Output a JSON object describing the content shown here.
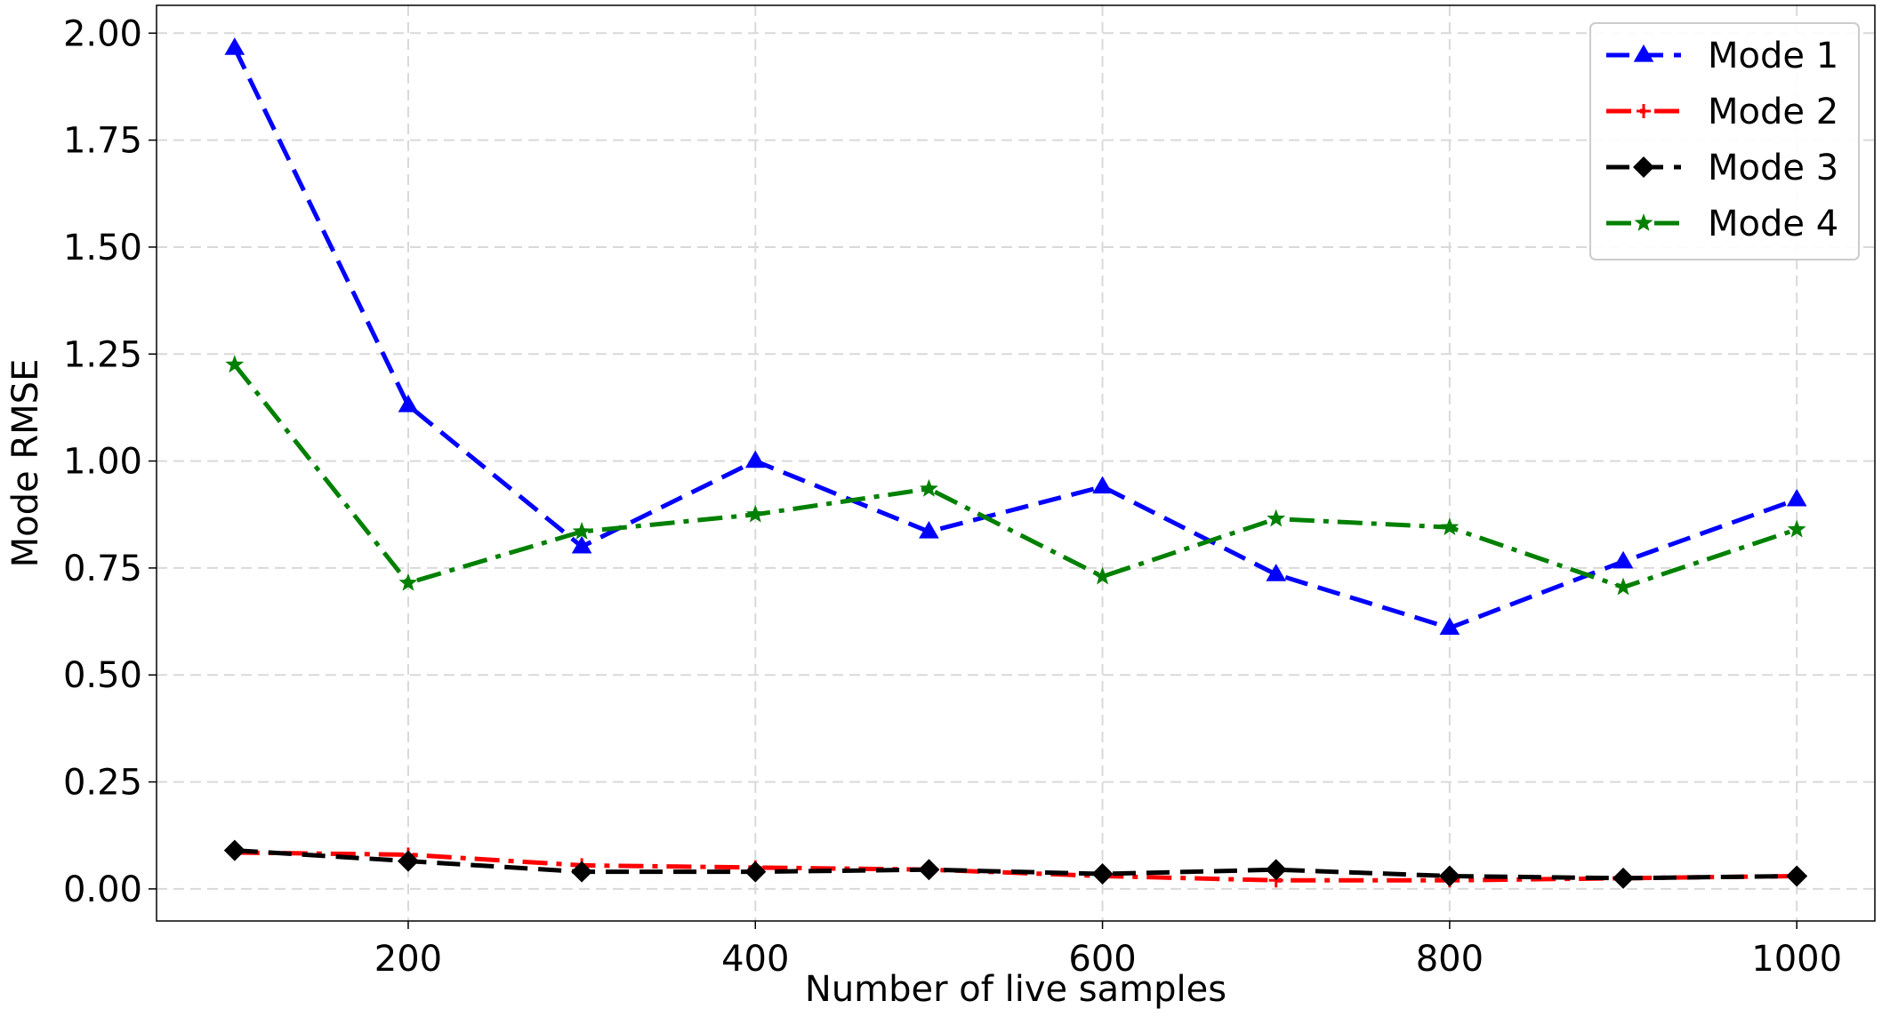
{
  "chart_data": {
    "type": "line",
    "title": "",
    "xlabel": "Number of live samples",
    "ylabel": "Mode RMSE",
    "xlim": [
      55,
      1045
    ],
    "ylim": [
      -0.075,
      2.065
    ],
    "xticks": [
      200,
      400,
      600,
      800,
      1000
    ],
    "yticks": [
      0.0,
      0.25,
      0.5,
      0.75,
      1.0,
      1.25,
      1.5,
      1.75,
      2.0
    ],
    "xtick_labels": [
      "200",
      "400",
      "600",
      "800",
      "1000"
    ],
    "ytick_labels": [
      "0.00",
      "0.25",
      "0.50",
      "0.75",
      "1.00",
      "1.25",
      "1.50",
      "1.75",
      "2.00"
    ],
    "grid": true,
    "legend_position": "top-right",
    "x": [
      100,
      200,
      300,
      400,
      500,
      600,
      700,
      800,
      900,
      1000
    ],
    "series": [
      {
        "name": "Mode 1",
        "color": "#0000ff",
        "linestyle": "dashed",
        "marker": "triangle",
        "values": [
          1.965,
          1.13,
          0.8,
          1.0,
          0.835,
          0.94,
          0.735,
          0.61,
          0.765,
          0.91
        ]
      },
      {
        "name": "Mode 2",
        "color": "#ff0000",
        "linestyle": "dashdot",
        "marker": "plus",
        "values": [
          0.085,
          0.08,
          0.055,
          0.05,
          0.045,
          0.03,
          0.02,
          0.02,
          0.025,
          0.03
        ]
      },
      {
        "name": "Mode 3",
        "color": "#000000",
        "linestyle": "dashed",
        "marker": "diamond",
        "values": [
          0.09,
          0.065,
          0.04,
          0.04,
          0.045,
          0.035,
          0.045,
          0.03,
          0.025,
          0.03
        ]
      },
      {
        "name": "Mode 4",
        "color": "#008000",
        "linestyle": "dashdot",
        "marker": "star",
        "values": [
          1.225,
          0.715,
          0.835,
          0.875,
          0.935,
          0.73,
          0.865,
          0.845,
          0.705,
          0.84
        ]
      }
    ]
  }
}
